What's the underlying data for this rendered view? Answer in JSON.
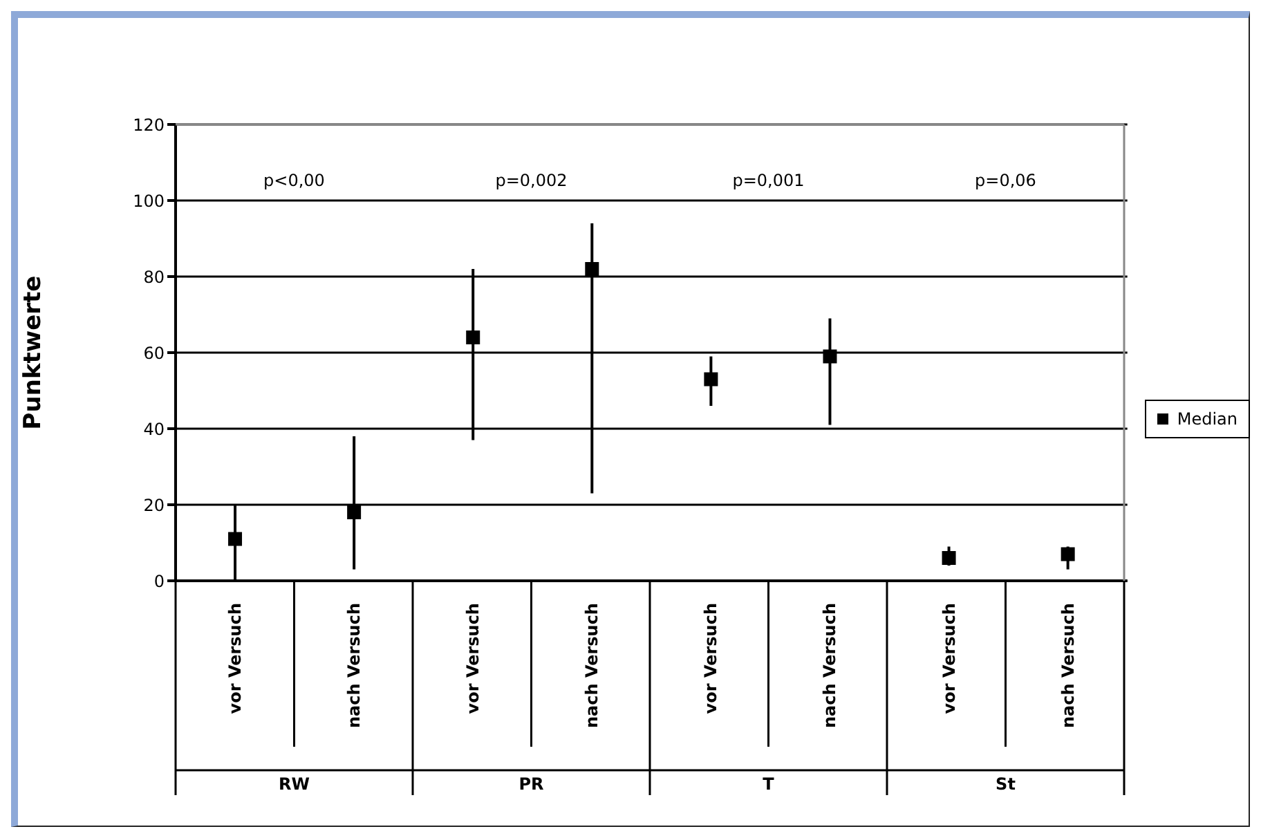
{
  "chart_data": {
    "type": "scatter",
    "ylabel": "Punktwerte",
    "categories": [
      "vor Versuch",
      "nach Versuch",
      "vor Versuch",
      "nach Versuch",
      "vor Versuch",
      "nach Versuch",
      "vor Versuch",
      "nach Versuch"
    ],
    "series": [
      {
        "name": "Median",
        "color": "#000000",
        "values": [
          11,
          18,
          64,
          82,
          53,
          59,
          6,
          7
        ],
        "errors": [
          [
            0,
            20
          ],
          [
            3,
            38
          ],
          [
            37,
            82
          ],
          [
            23,
            94
          ],
          [
            46,
            59
          ],
          [
            41,
            69
          ],
          [
            4,
            9
          ],
          [
            3,
            9
          ]
        ]
      }
    ],
    "ylim": [
      0,
      120
    ],
    "yticks": [
      0,
      20,
      40,
      60,
      80,
      100,
      120
    ],
    "grid": "y",
    "legend": "right",
    "marker": "square",
    "annotations": [
      "p<0,00",
      "p=0,002",
      "p=0,001",
      "p=0,06",
      "RW",
      "PR",
      "T",
      "St"
    ]
  }
}
